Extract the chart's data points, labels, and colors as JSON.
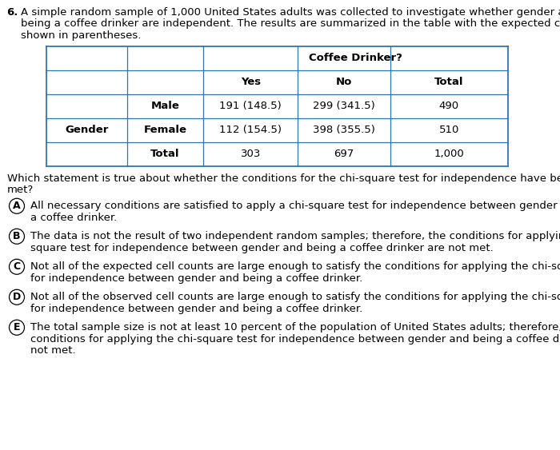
{
  "question_number": "6.",
  "question_lines": [
    "A simple random sample of 1,000 United States adults was collected to investigate whether gender and",
    "being a coffee drinker are independent. The results are summarized in the table with the expected counts",
    "shown in parentheses."
  ],
  "follow_up_lines": [
    "Which statement is true about whether the conditions for the chi-square test for independence have been",
    "met?"
  ],
  "choices": [
    {
      "label": "A",
      "lines": [
        "All necessary conditions are satisfied to apply a chi-square test for independence between gender and being",
        "a coffee drinker."
      ]
    },
    {
      "label": "B",
      "lines": [
        "The data is not the result of two independent random samples; therefore, the conditions for applying the chi-",
        "square test for independence between gender and being a coffee drinker are not met."
      ]
    },
    {
      "label": "C",
      "lines": [
        "Not all of the expected cell counts are large enough to satisfy the conditions for applying the chi-square test",
        "for independence between gender and being a coffee drinker."
      ]
    },
    {
      "label": "D",
      "lines": [
        "Not all of the observed cell counts are large enough to satisfy the conditions for applying the chi-square test",
        "for independence between gender and being a coffee drinker."
      ]
    },
    {
      "label": "E",
      "lines": [
        "The total sample size is not at least 10 percent of the population of United States adults; therefore, the",
        "conditions for applying the chi-square test for independence between gender and being a coffee drinker are",
        "not met."
      ]
    }
  ],
  "border_color": "#2E75B6",
  "background_color": "#ffffff",
  "text_color": "#000000",
  "font_size_pt": 9.5,
  "table": {
    "col0_coffee_drinker_text": "Coffee Drinker?",
    "col_headers": [
      "Yes",
      "No",
      "Total"
    ],
    "row_male": [
      "Male",
      "191 (148.5)",
      "299 (341.5)",
      "490"
    ],
    "row_female": [
      "Female",
      "112 (154.5)",
      "398 (355.5)",
      "510"
    ],
    "row_total": [
      "Total",
      "303",
      "697",
      "1,000"
    ],
    "gender_label": "Gender"
  }
}
